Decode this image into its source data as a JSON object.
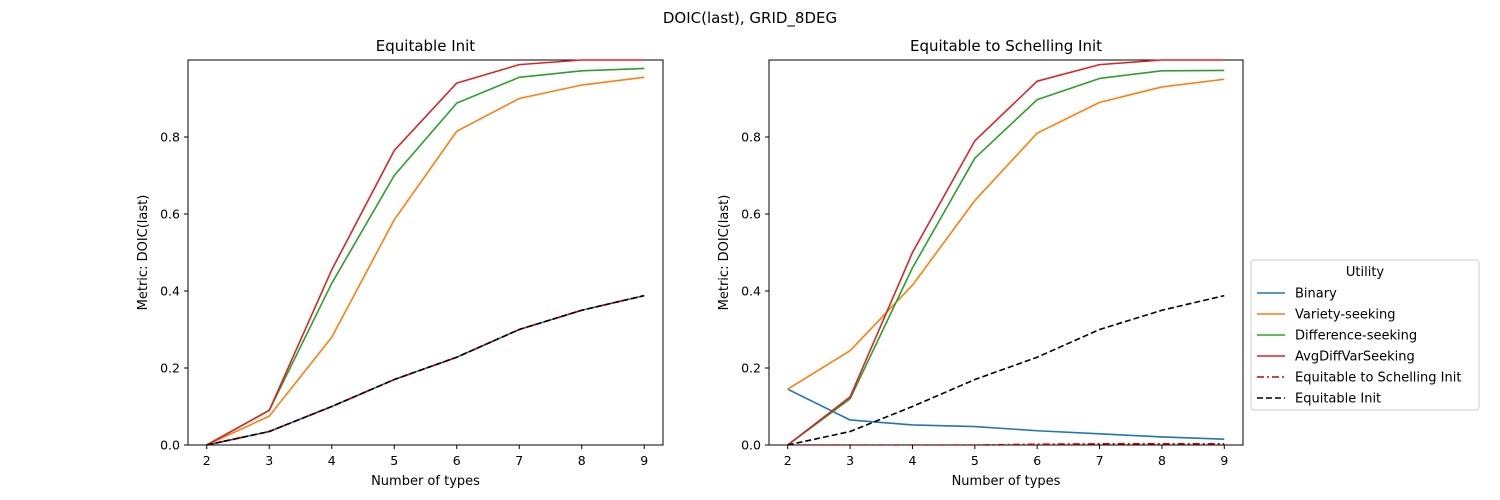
{
  "suptitle": "DOIC(last), GRID_8DEG",
  "chart_data": [
    {
      "type": "line",
      "title": "Equitable Init",
      "xlabel": "Number of types",
      "ylabel": "Metric: DOIC(last)",
      "x": [
        2,
        3,
        4,
        5,
        6,
        7,
        8,
        9
      ],
      "xlim": [
        1.7,
        9.3
      ],
      "ylim": [
        0,
        1.0
      ],
      "xticks": [
        "2",
        "3",
        "4",
        "5",
        "6",
        "7",
        "8",
        "9"
      ],
      "yticks": [
        "0.0",
        "0.2",
        "0.4",
        "0.6",
        "0.8"
      ],
      "grid": false,
      "series": [
        {
          "name": "Binary",
          "color": "#1f77b4",
          "style": "solid",
          "values": [
            0.0,
            0.035,
            0.1,
            0.17,
            0.228,
            0.3,
            0.35,
            0.388
          ]
        },
        {
          "name": "Variety-seeking",
          "color": "#ff7f0e",
          "style": "solid",
          "values": [
            0.0,
            0.075,
            0.28,
            0.585,
            0.815,
            0.9,
            0.935,
            0.955
          ]
        },
        {
          "name": "Difference-seeking",
          "color": "#2ca02c",
          "style": "solid",
          "values": [
            0.0,
            0.09,
            0.42,
            0.7,
            0.888,
            0.955,
            0.972,
            0.978
          ]
        },
        {
          "name": "AvgDiffVarSeeking",
          "color": "#d62728",
          "style": "solid",
          "values": [
            0.0,
            0.09,
            0.455,
            0.765,
            0.94,
            0.988,
            1.0,
            1.0
          ]
        },
        {
          "name": "Equitable to Schelling Init",
          "color": "#cc0000",
          "style": "dashdot",
          "values": [
            0.0,
            0.035,
            0.1,
            0.17,
            0.228,
            0.3,
            0.35,
            0.388
          ]
        },
        {
          "name": "Equitable Init",
          "color": "#000000",
          "style": "dashed",
          "values": [
            0.0,
            0.035,
            0.1,
            0.17,
            0.228,
            0.3,
            0.35,
            0.388
          ]
        }
      ]
    },
    {
      "type": "line",
      "title": "Equitable to Schelling Init",
      "xlabel": "Number of types",
      "ylabel": "Metric: DOIC(last)",
      "x": [
        2,
        3,
        4,
        5,
        6,
        7,
        8,
        9
      ],
      "xlim": [
        1.7,
        9.3
      ],
      "ylim": [
        0,
        1.0
      ],
      "xticks": [
        "2",
        "3",
        "4",
        "5",
        "6",
        "7",
        "8",
        "9"
      ],
      "yticks": [
        "0.0",
        "0.2",
        "0.4",
        "0.6",
        "0.8"
      ],
      "grid": false,
      "series": [
        {
          "name": "Binary",
          "color": "#1f77b4",
          "style": "solid",
          "values": [
            0.145,
            0.065,
            0.052,
            0.048,
            0.037,
            0.029,
            0.021,
            0.015
          ]
        },
        {
          "name": "Variety-seeking",
          "color": "#ff7f0e",
          "style": "solid",
          "values": [
            0.145,
            0.245,
            0.415,
            0.635,
            0.81,
            0.89,
            0.93,
            0.95
          ]
        },
        {
          "name": "Difference-seeking",
          "color": "#2ca02c",
          "style": "solid",
          "values": [
            0.0,
            0.12,
            0.46,
            0.745,
            0.897,
            0.952,
            0.972,
            0.973
          ]
        },
        {
          "name": "AvgDiffVarSeeking",
          "color": "#d62728",
          "style": "solid",
          "values": [
            0.0,
            0.125,
            0.5,
            0.79,
            0.945,
            0.988,
            1.0,
            1.0
          ]
        },
        {
          "name": "Equitable to Schelling Init",
          "color": "#cc0000",
          "style": "dashdot",
          "values": [
            0.0,
            0.0,
            0.0,
            0.0,
            0.002,
            0.003,
            0.003,
            0.003
          ]
        },
        {
          "name": "Equitable Init",
          "color": "#000000",
          "style": "dashed",
          "values": [
            0.0,
            0.035,
            0.1,
            0.17,
            0.228,
            0.3,
            0.35,
            0.388
          ]
        }
      ]
    }
  ],
  "legend": {
    "title": "Utility",
    "placement": "right",
    "entries": [
      {
        "label": "Binary",
        "color": "#1f77b4",
        "style": "solid"
      },
      {
        "label": "Variety-seeking",
        "color": "#ff7f0e",
        "style": "solid"
      },
      {
        "label": "Difference-seeking",
        "color": "#2ca02c",
        "style": "solid"
      },
      {
        "label": "AvgDiffVarSeeking",
        "color": "#d62728",
        "style": "solid"
      },
      {
        "label": "Equitable to Schelling Init",
        "color": "#cc0000",
        "style": "dashdot"
      },
      {
        "label": "Equitable Init",
        "color": "#000000",
        "style": "dashed"
      }
    ]
  }
}
